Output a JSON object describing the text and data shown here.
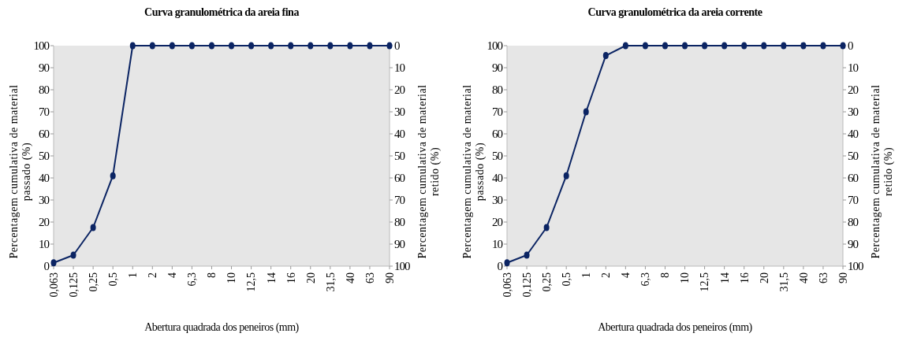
{
  "chart_data": [
    {
      "type": "line",
      "title": "Curva granulométrica da areia fina",
      "xlabel": "Abertura quadrada dos peneiros (mm)",
      "ylabel": "Percentagem cumulativa de material passado (%)",
      "y2label": "Percentagem cumulativa de material retido (%)",
      "categories": [
        "0,063",
        "0,125",
        "0,25",
        "0,5",
        "1",
        "2",
        "4",
        "6,3",
        "8",
        "10",
        "12,5",
        "14",
        "16",
        "20",
        "31,5",
        "40",
        "63",
        "90"
      ],
      "series": [
        {
          "color": "#0b2463",
          "values": [
            1.5,
            5,
            17.5,
            41,
            100,
            100,
            100,
            100,
            100,
            100,
            100,
            100,
            100,
            100,
            100,
            100,
            100,
            100
          ]
        }
      ],
      "ylim": [
        0,
        100
      ],
      "yticks": [
        0,
        10,
        20,
        30,
        40,
        50,
        60,
        70,
        80,
        90,
        100
      ],
      "y2lim": [
        100,
        0
      ],
      "y2ticks": [
        0,
        10,
        20,
        30,
        40,
        50,
        60,
        70,
        80,
        90,
        100
      ],
      "grid": false,
      "marker": "circle",
      "line_style": "solid"
    },
    {
      "type": "line",
      "title": "Curva granulométrica da areia corrente",
      "xlabel": "Abertura quadrada dos peneiros (mm)",
      "ylabel": "Percentagem cumulativa de material passado (%)",
      "y2label": "Percentagem cumulativa de material retido (%)",
      "categories": [
        "0,063",
        "0,125",
        "0,25",
        "0,5",
        "1",
        "2",
        "4",
        "6,3",
        "8",
        "10",
        "12,5",
        "14",
        "16",
        "20",
        "31,5",
        "40",
        "63",
        "90"
      ],
      "series": [
        {
          "color": "#0b2463",
          "values": [
            1.5,
            5,
            17.5,
            41,
            70,
            95.5,
            100,
            100,
            100,
            100,
            100,
            100,
            100,
            100,
            100,
            100,
            100,
            100
          ]
        }
      ],
      "ylim": [
        0,
        100
      ],
      "yticks": [
        0,
        10,
        20,
        30,
        40,
        50,
        60,
        70,
        80,
        90,
        100
      ],
      "y2lim": [
        100,
        0
      ],
      "y2ticks": [
        0,
        10,
        20,
        30,
        40,
        50,
        60,
        70,
        80,
        90,
        100
      ],
      "grid": false,
      "marker": "circle",
      "line_style": "solid"
    }
  ]
}
